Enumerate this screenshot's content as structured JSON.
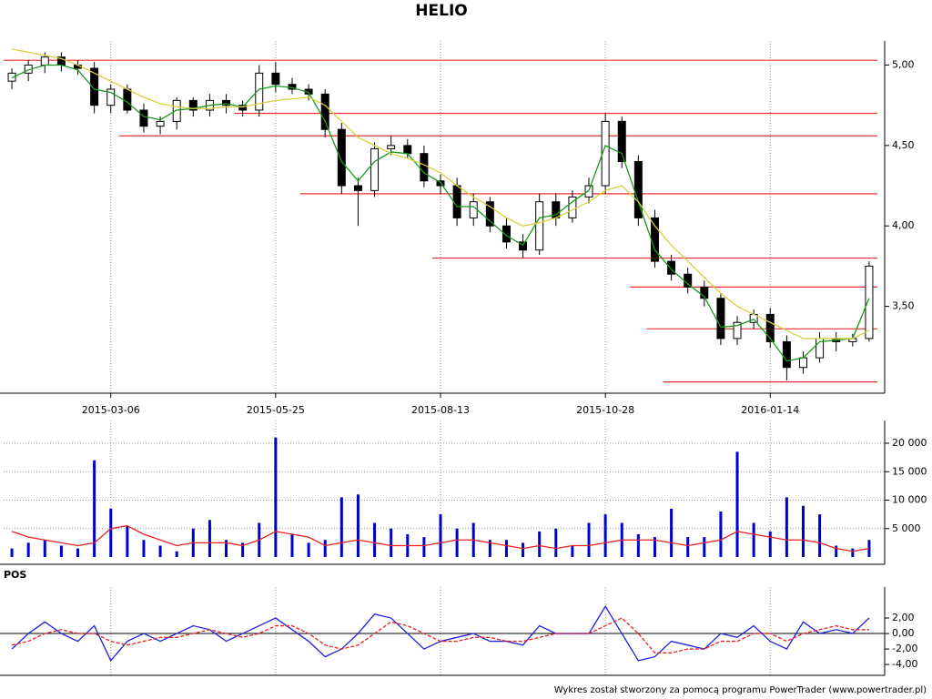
{
  "title": "HELIO",
  "footer": "Wykres został stworzony za pomocą programu PowerTrader (www.powertrader.pl)",
  "chart_data": [
    {
      "type": "candlestick",
      "categories": [
        null,
        null,
        null,
        null,
        null,
        null,
        "2015-03-06",
        null,
        null,
        null,
        null,
        null,
        null,
        null,
        null,
        null,
        "2015-05-25",
        null,
        null,
        null,
        null,
        null,
        null,
        null,
        null,
        null,
        "2015-08-13",
        null,
        null,
        null,
        null,
        null,
        null,
        null,
        null,
        null,
        "2015-10-28",
        null,
        null,
        null,
        null,
        null,
        null,
        null,
        null,
        null,
        "2016-01-14",
        null,
        null,
        null,
        null,
        null,
        null
      ],
      "open": [
        4.9,
        4.95,
        5.0,
        5.05,
        5.0,
        4.98,
        4.75,
        4.85,
        4.72,
        4.62,
        4.65,
        4.78,
        4.72,
        4.78,
        4.75,
        4.72,
        4.95,
        4.88,
        4.85,
        4.82,
        4.6,
        4.25,
        4.22,
        4.48,
        4.5,
        4.45,
        4.28,
        4.25,
        4.05,
        4.15,
        4.0,
        3.9,
        3.85,
        4.15,
        4.05,
        4.18,
        4.25,
        4.65,
        4.4,
        4.05,
        3.78,
        3.7,
        3.62,
        3.55,
        3.3,
        3.4,
        3.45,
        3.28,
        3.12,
        3.18,
        3.3,
        3.28,
        3.3
      ],
      "high": [
        4.98,
        5.03,
        5.08,
        5.08,
        5.03,
        5.02,
        4.88,
        4.88,
        4.76,
        4.68,
        4.8,
        4.8,
        4.82,
        4.82,
        4.78,
        5.0,
        5.02,
        4.92,
        4.88,
        4.85,
        4.64,
        4.3,
        4.52,
        4.56,
        4.54,
        4.5,
        4.32,
        4.3,
        4.2,
        4.18,
        4.05,
        3.95,
        4.2,
        4.2,
        4.22,
        4.3,
        4.7,
        4.68,
        4.44,
        4.1,
        3.82,
        3.74,
        3.66,
        3.58,
        3.44,
        3.48,
        3.49,
        3.32,
        3.22,
        3.34,
        3.34,
        3.33,
        3.78
      ],
      "low": [
        4.85,
        4.9,
        4.95,
        4.96,
        4.94,
        4.7,
        4.7,
        4.7,
        4.58,
        4.57,
        4.6,
        4.68,
        4.68,
        4.7,
        4.68,
        4.68,
        4.83,
        4.82,
        4.78,
        4.55,
        4.2,
        4.0,
        4.18,
        4.44,
        4.42,
        4.24,
        4.2,
        4.0,
        4.0,
        3.96,
        3.86,
        3.8,
        3.82,
        4.0,
        4.02,
        4.14,
        4.2,
        4.36,
        4.0,
        3.74,
        3.66,
        3.58,
        3.5,
        3.26,
        3.26,
        3.36,
        3.24,
        3.04,
        3.08,
        3.15,
        3.22,
        3.25,
        3.28
      ],
      "close": [
        4.95,
        5.0,
        5.05,
        5.0,
        4.98,
        4.75,
        4.85,
        4.72,
        4.62,
        4.65,
        4.78,
        4.72,
        4.78,
        4.75,
        4.72,
        4.95,
        4.88,
        4.85,
        4.82,
        4.6,
        4.25,
        4.22,
        4.48,
        4.5,
        4.45,
        4.28,
        4.25,
        4.05,
        4.15,
        4.0,
        3.9,
        3.85,
        4.15,
        4.05,
        4.18,
        4.25,
        4.65,
        4.4,
        4.05,
        3.78,
        3.7,
        3.62,
        3.55,
        3.3,
        3.4,
        3.45,
        3.28,
        3.12,
        3.18,
        3.3,
        3.28,
        3.3,
        3.75
      ],
      "series": [
        {
          "color": "#1a9a1a",
          "values": [
            4.92,
            4.97,
            5.0,
            5.0,
            4.97,
            4.85,
            4.83,
            4.77,
            4.68,
            4.66,
            4.72,
            4.73,
            4.75,
            4.76,
            4.74,
            4.85,
            4.87,
            4.86,
            4.83,
            4.65,
            4.4,
            4.28,
            4.4,
            4.46,
            4.45,
            4.33,
            4.27,
            4.12,
            4.12,
            4.03,
            3.94,
            3.88,
            4.05,
            4.07,
            4.15,
            4.22,
            4.5,
            4.45,
            4.15,
            3.85,
            3.73,
            3.64,
            3.56,
            3.37,
            3.38,
            3.42,
            3.3,
            3.16,
            3.18,
            3.28,
            3.29,
            3.3,
            3.55
          ]
        },
        {
          "color": "#d8d040",
          "values": [
            5.1,
            5.08,
            5.06,
            5.04,
            5.0,
            4.95,
            4.9,
            4.85,
            4.8,
            4.76,
            4.74,
            4.73,
            4.73,
            4.74,
            4.74,
            4.76,
            4.78,
            4.79,
            4.8,
            4.75,
            4.65,
            4.55,
            4.5,
            4.45,
            4.42,
            4.38,
            4.33,
            4.25,
            4.18,
            4.12,
            4.05,
            4.0,
            4.02,
            4.05,
            4.1,
            4.15,
            4.22,
            4.25,
            4.15,
            4.0,
            3.88,
            3.78,
            3.68,
            3.58,
            3.5,
            3.45,
            3.4,
            3.35,
            3.3,
            3.3,
            3.3,
            3.3,
            3.35
          ]
        }
      ],
      "levels": [
        {
          "value": 5.03,
          "start": 0
        },
        {
          "value": 4.7,
          "start": 14
        },
        {
          "value": 4.56,
          "start": 7
        },
        {
          "value": 4.2,
          "start": 18
        },
        {
          "value": 3.8,
          "start": 26
        },
        {
          "value": 3.62,
          "start": 38
        },
        {
          "value": 3.36,
          "start": 39
        },
        {
          "value": 3.03,
          "start": 40
        }
      ],
      "level_color": "#e83030",
      "ylim": [
        2.96,
        5.15
      ],
      "yticks": [
        {
          "value": 3.5,
          "label": "3,50"
        },
        {
          "value": 4,
          "label": "4,00"
        },
        {
          "value": 4.5,
          "label": "4,50"
        },
        {
          "value": 5,
          "label": "5,00"
        }
      ]
    },
    {
      "type": "bar",
      "color": "#0000cc",
      "values": [
        1500,
        2500,
        3000,
        2000,
        1500,
        17000,
        8500,
        5500,
        3000,
        2000,
        1000,
        5000,
        6500,
        3000,
        2500,
        6000,
        21000,
        4000,
        2500,
        3000,
        10500,
        11000,
        6000,
        5000,
        4000,
        3500,
        7500,
        5000,
        6000,
        3000,
        3000,
        2500,
        4500,
        5000,
        2000,
        6000,
        7500,
        6000,
        4000,
        3500,
        8500,
        3500,
        3500,
        8000,
        18500,
        6000,
        4500,
        10500,
        9000,
        7500,
        2000,
        1500,
        3000
      ],
      "series": [
        {
          "color": "#e82020",
          "values": [
            4500,
            3500,
            3000,
            2500,
            2000,
            2500,
            5000,
            5500,
            4000,
            3000,
            2000,
            2500,
            2500,
            2500,
            2000,
            3000,
            4500,
            4000,
            3500,
            2000,
            2500,
            3000,
            2500,
            2000,
            2000,
            2000,
            2500,
            3000,
            3000,
            2500,
            2000,
            1500,
            2000,
            1500,
            2000,
            2000,
            2500,
            3000,
            3000,
            3000,
            2500,
            2000,
            2500,
            3000,
            4500,
            4000,
            3500,
            3000,
            3000,
            2500,
            1500,
            1000,
            1500
          ]
        }
      ],
      "ylim": [
        0,
        24000
      ],
      "yticks": [
        {
          "value": 5000,
          "label": "5 000"
        },
        {
          "value": 10000,
          "label": "10 000"
        },
        {
          "value": 15000,
          "label": "15 000"
        },
        {
          "value": 20000,
          "label": "20 000"
        }
      ],
      "grid": true
    },
    {
      "type": "line",
      "title": "POS",
      "series": [
        {
          "color": "#2020dd",
          "style": "solid",
          "values": [
            -2,
            0,
            1.5,
            0,
            -1,
            1,
            -3.5,
            -1,
            0,
            -1,
            0,
            1,
            0.5,
            -1,
            0,
            1,
            2,
            0.5,
            -1,
            -3,
            -2,
            0,
            2.5,
            2,
            0,
            -2,
            -1,
            -0.5,
            0,
            -1,
            -1,
            -1.5,
            1,
            0,
            0,
            0,
            3.5,
            0,
            -3.5,
            -3,
            -1,
            -1.5,
            -2,
            0,
            -0.5,
            1,
            -1,
            -2,
            1.5,
            0,
            0.5,
            0,
            2
          ]
        },
        {
          "color": "#e82020",
          "style": "dashed",
          "values": [
            -1.5,
            -1,
            0,
            0.5,
            0,
            0,
            -1,
            -1.5,
            -1,
            -0.5,
            -0.5,
            0,
            0.5,
            0,
            -0.5,
            0,
            1,
            1,
            0,
            -1.5,
            -2,
            -1.5,
            0,
            1.5,
            1,
            0,
            -1,
            -1,
            -0.5,
            -0.5,
            -1,
            -1,
            -0.5,
            0,
            0,
            0,
            1,
            2,
            0,
            -2.5,
            -2.5,
            -2,
            -2,
            -1,
            -1,
            0,
            0,
            -1,
            0,
            0.5,
            1,
            0.5,
            0.5
          ]
        }
      ],
      "ylim": [
        -5.4,
        6
      ],
      "yticks": [
        {
          "value": -4,
          "label": "-4,00"
        },
        {
          "value": -2,
          "label": "-2,00"
        },
        {
          "value": 0,
          "label": "0,00"
        },
        {
          "value": 2,
          "label": "2,00"
        }
      ],
      "zero_line": true
    }
  ]
}
